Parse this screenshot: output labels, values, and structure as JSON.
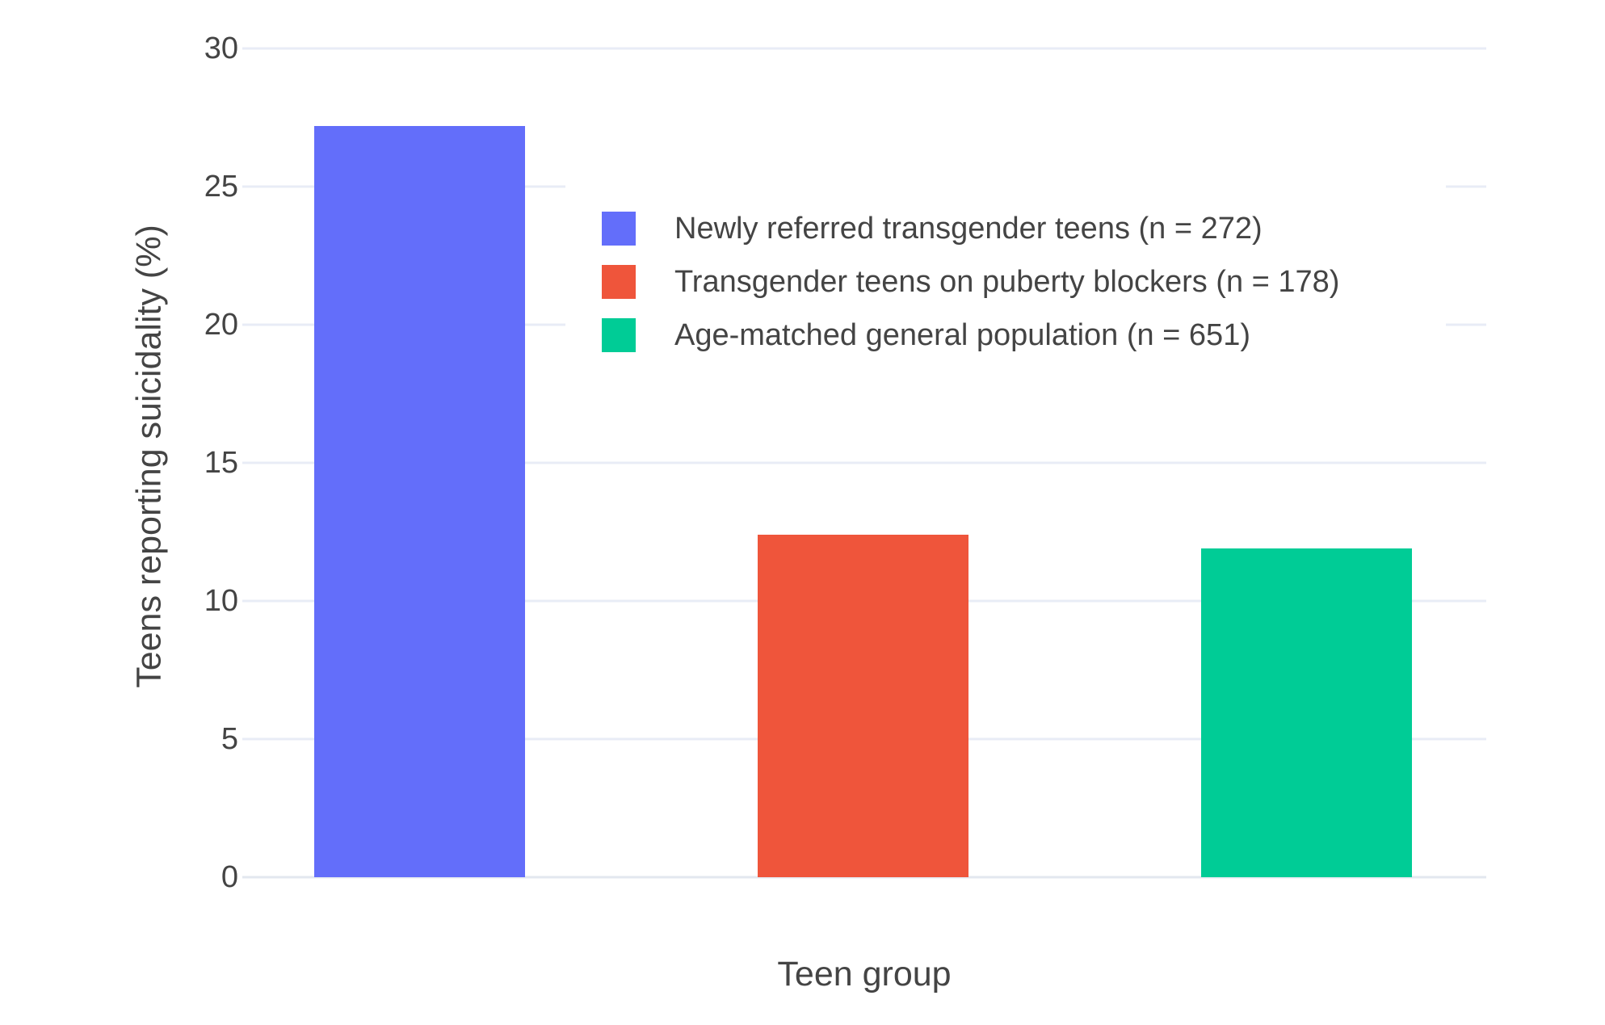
{
  "figure": {
    "background_color": "#ffffff",
    "grid_color": "#e8ecf6",
    "zeroline_color": "#e3e7ef",
    "text_color": "#444444"
  },
  "chart_data": {
    "type": "bar",
    "title": "",
    "xlabel": "Teen group",
    "ylabel": "Teens reporting suicidality (%)",
    "ylim": [
      0,
      30
    ],
    "yticks": [
      0,
      5,
      10,
      15,
      20,
      25,
      30
    ],
    "grid": true,
    "legend_position": "inside upper-right",
    "categories": [
      "Newly referred transgender teens (n = 272)",
      "Transgender teens on puberty blockers (n = 178)",
      "Age-matched general population (n = 651)"
    ],
    "values": [
      27.2,
      12.4,
      11.9
    ],
    "colors": [
      "#636EFA",
      "#EF553B",
      "#00CC96"
    ],
    "legend": [
      {
        "label": "Newly referred transgender teens (n = 272)",
        "color": "#636EFA",
        "swatch": "blue-square-icon"
      },
      {
        "label": "Transgender teens on puberty blockers (n = 178)",
        "color": "#EF553B",
        "swatch": "red-square-icon"
      },
      {
        "label": "Age-matched general population (n = 651)",
        "color": "#00CC96",
        "swatch": "green-square-icon"
      }
    ]
  }
}
